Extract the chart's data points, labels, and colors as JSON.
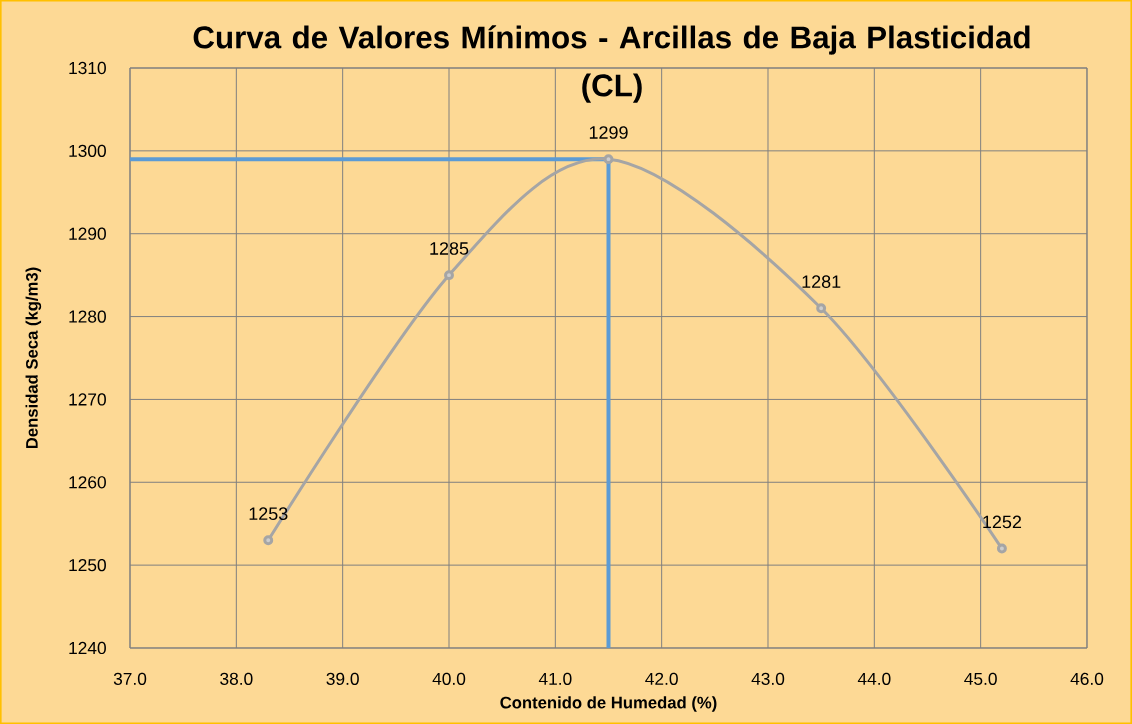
{
  "chart_data": {
    "type": "line",
    "title": "Curva de Valores Mínimos - Arcillas de Baja Plasticidad (CL)",
    "xlabel": "Contenido de Humedad (%)",
    "ylabel": "Densidad Seca (kg/m3)",
    "x": [
      38.3,
      40.0,
      41.5,
      43.5,
      45.2
    ],
    "values": [
      1253,
      1285,
      1299,
      1281,
      1252
    ],
    "color": "#a5a5a5",
    "marker": "circle",
    "xlim": [
      37,
      46
    ],
    "xticks": [
      {
        "value": 37,
        "label": "37.0"
      },
      {
        "value": 38,
        "label": "38.0"
      },
      {
        "value": 39,
        "label": "39.0"
      },
      {
        "value": 40,
        "label": "40.0"
      },
      {
        "value": 41,
        "label": "41.0"
      },
      {
        "value": 42,
        "label": "42.0"
      },
      {
        "value": 43,
        "label": "43.0"
      },
      {
        "value": 44,
        "label": "44.0"
      },
      {
        "value": 45,
        "label": "45.0"
      },
      {
        "value": 46,
        "label": "46.0"
      }
    ],
    "ylim": [
      1240,
      1310
    ],
    "yticks": [
      1240,
      1250,
      1260,
      1270,
      1280,
      1290,
      1300,
      1310
    ],
    "grid": true,
    "data_labels": true,
    "ref_lines": [
      {
        "axis": "y",
        "value": 1299,
        "color": "#5b9bd5"
      },
      {
        "axis": "x",
        "value": 41.5,
        "color": "#5b9bd5"
      }
    ]
  }
}
